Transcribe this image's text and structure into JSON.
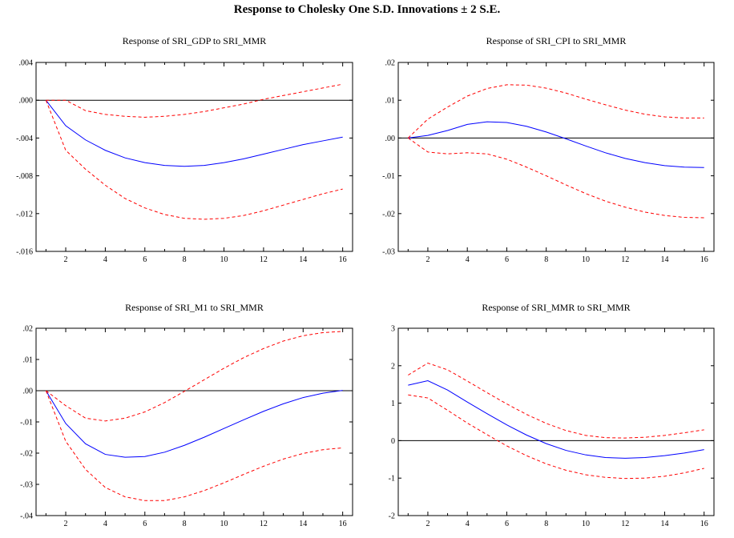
{
  "page_title": "Response to Cholesky One S.D. Innovations ± 2 S.E.",
  "colors": {
    "response": "#0000ff",
    "bands": "#ff0000",
    "zero_line": "#000000",
    "frame": "#000000"
  },
  "chart_data": [
    {
      "type": "line",
      "title": "Response of SRI_GDP to SRI_MMR",
      "x": [
        1,
        2,
        3,
        4,
        5,
        6,
        7,
        8,
        9,
        10,
        11,
        12,
        13,
        14,
        15,
        16
      ],
      "xticks": [
        "2",
        "4",
        "6",
        "8",
        "10",
        "12",
        "14",
        "16"
      ],
      "yticks": [
        "-.016",
        "-.012",
        "-.008",
        "-.004",
        ".000",
        ".004"
      ],
      "yticks_values": [
        -0.016,
        -0.012,
        -0.008,
        -0.004,
        0.0,
        0.004
      ],
      "ylim": [
        -0.016,
        0.004
      ],
      "zero_line": 0,
      "series": [
        {
          "values": [
            0.0,
            -0.0027,
            -0.0042,
            -0.0053,
            -0.0061,
            -0.0066,
            -0.0069,
            -0.007,
            -0.0069,
            -0.0066,
            -0.0062,
            -0.0057,
            -0.0052,
            -0.0047,
            -0.0043,
            -0.0039
          ]
        },
        {
          "values": [
            0.0,
            0.0,
            -0.0011,
            -0.0015,
            -0.0017,
            -0.0018,
            -0.0017,
            -0.0015,
            -0.0012,
            -0.0008,
            -0.0004,
            0.0001,
            0.0005,
            0.0009,
            0.0013,
            0.0017
          ]
        },
        {
          "values": [
            0.0,
            -0.0053,
            -0.0073,
            -0.009,
            -0.0104,
            -0.0114,
            -0.0121,
            -0.0125,
            -0.0126,
            -0.0125,
            -0.0122,
            -0.0117,
            -0.0111,
            -0.0105,
            -0.0099,
            -0.0094
          ]
        }
      ]
    },
    {
      "type": "line",
      "title": "Response of SRI_CPI to SRI_MMR",
      "x": [
        1,
        2,
        3,
        4,
        5,
        6,
        7,
        8,
        9,
        10,
        11,
        12,
        13,
        14,
        15,
        16
      ],
      "xticks": [
        "2",
        "4",
        "6",
        "8",
        "10",
        "12",
        "14",
        "16"
      ],
      "yticks": [
        "-.03",
        "-.02",
        "-.01",
        ".00",
        ".01",
        ".02"
      ],
      "yticks_values": [
        -0.03,
        -0.02,
        -0.01,
        0.0,
        0.01,
        0.02
      ],
      "ylim": [
        -0.03,
        0.02
      ],
      "zero_line": 0,
      "series": [
        {
          "values": [
            0.0,
            0.0007,
            0.002,
            0.0036,
            0.0043,
            0.0041,
            0.0031,
            0.0016,
            -0.0002,
            -0.0021,
            -0.0039,
            -0.0054,
            -0.0065,
            -0.0073,
            -0.0077,
            -0.0078
          ]
        },
        {
          "values": [
            0.0,
            0.005,
            0.0082,
            0.0111,
            0.0131,
            0.0141,
            0.014,
            0.0132,
            0.0119,
            0.0103,
            0.0088,
            0.0074,
            0.0063,
            0.0056,
            0.0053,
            0.0053
          ]
        },
        {
          "values": [
            0.0,
            -0.0037,
            -0.0042,
            -0.0039,
            -0.0042,
            -0.0056,
            -0.0077,
            -0.01,
            -0.0124,
            -0.0147,
            -0.0167,
            -0.0183,
            -0.0196,
            -0.0205,
            -0.021,
            -0.0211
          ]
        }
      ]
    },
    {
      "type": "line",
      "title": "Response of SRI_M1 to SRI_MMR",
      "x": [
        1,
        2,
        3,
        4,
        5,
        6,
        7,
        8,
        9,
        10,
        11,
        12,
        13,
        14,
        15,
        16
      ],
      "xticks": [
        "2",
        "4",
        "6",
        "8",
        "10",
        "12",
        "14",
        "16"
      ],
      "yticks": [
        "-.04",
        "-.03",
        "-.02",
        "-.01",
        ".00",
        ".01",
        ".02"
      ],
      "yticks_values": [
        -0.04,
        -0.03,
        -0.02,
        -0.01,
        0.0,
        0.01,
        0.02
      ],
      "ylim": [
        -0.04,
        0.02
      ],
      "zero_line": 0,
      "series": [
        {
          "values": [
            0.0,
            -0.0105,
            -0.017,
            -0.0204,
            -0.0213,
            -0.0211,
            -0.0197,
            -0.0175,
            -0.0149,
            -0.0121,
            -0.0093,
            -0.0066,
            -0.0042,
            -0.0022,
            -0.0008,
            0.0001
          ]
        },
        {
          "values": [
            0.0,
            -0.0048,
            -0.0088,
            -0.0097,
            -0.0088,
            -0.0068,
            -0.0038,
            -0.0002,
            0.0035,
            0.0072,
            0.0106,
            0.0135,
            0.0159,
            0.0176,
            0.0186,
            0.019
          ]
        },
        {
          "values": [
            0.0,
            -0.0162,
            -0.0252,
            -0.031,
            -0.034,
            -0.0352,
            -0.0352,
            -0.034,
            -0.032,
            -0.0295,
            -0.0268,
            -0.0242,
            -0.0219,
            -0.0201,
            -0.0189,
            -0.0183
          ]
        }
      ]
    },
    {
      "type": "line",
      "title": "Response of SRI_MMR to SRI_MMR",
      "x": [
        1,
        2,
        3,
        4,
        5,
        6,
        7,
        8,
        9,
        10,
        11,
        12,
        13,
        14,
        15,
        16
      ],
      "xticks": [
        "2",
        "4",
        "6",
        "8",
        "10",
        "12",
        "14",
        "16"
      ],
      "yticks": [
        "-2",
        "-1",
        "0",
        "1",
        "2",
        "3"
      ],
      "yticks_values": [
        -2,
        -1,
        0,
        1,
        2,
        3
      ],
      "ylim": [
        -2,
        3
      ],
      "zero_line": 0,
      "series": [
        {
          "values": [
            1.48,
            1.6,
            1.35,
            1.03,
            0.72,
            0.42,
            0.15,
            -0.08,
            -0.26,
            -0.38,
            -0.45,
            -0.47,
            -0.45,
            -0.4,
            -0.33,
            -0.24
          ]
        },
        {
          "values": [
            1.75,
            2.07,
            1.89,
            1.59,
            1.28,
            0.98,
            0.7,
            0.46,
            0.27,
            0.14,
            0.08,
            0.07,
            0.09,
            0.14,
            0.21,
            0.29
          ]
        },
        {
          "values": [
            1.22,
            1.14,
            0.81,
            0.47,
            0.16,
            -0.14,
            -0.4,
            -0.62,
            -0.79,
            -0.91,
            -0.98,
            -1.01,
            -1.0,
            -0.95,
            -0.86,
            -0.74
          ]
        }
      ]
    }
  ]
}
